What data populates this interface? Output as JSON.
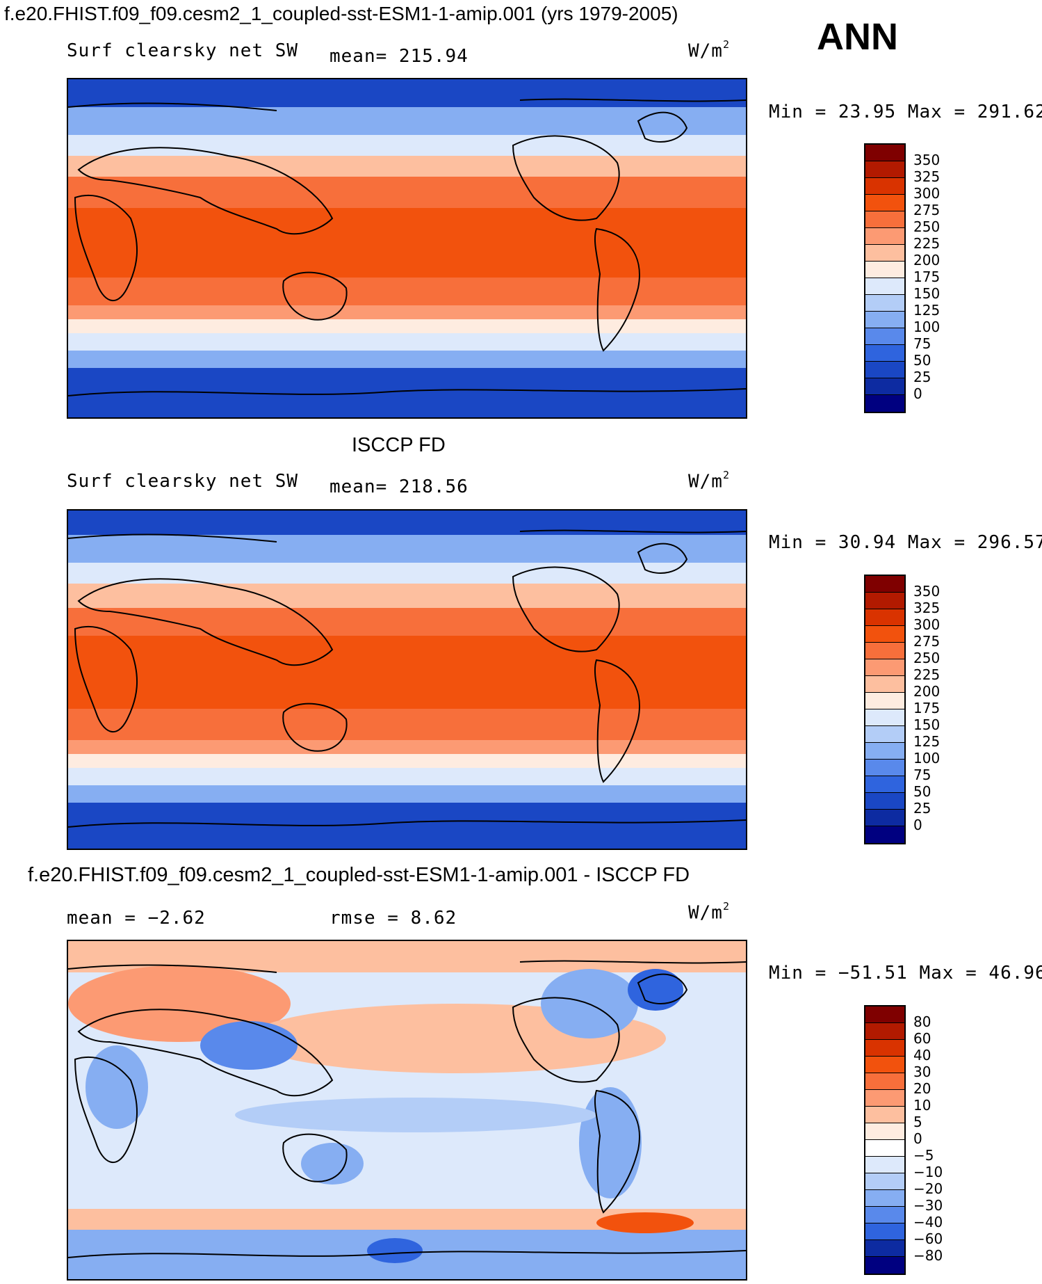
{
  "header": {
    "title": "f.e20.FHIST.f09_f09.cesm2_1_coupled-sst-ESM1-1-amip.001 (yrs 1979-2005)",
    "season": "ANN"
  },
  "panels": [
    {
      "id": "model",
      "section_title": "",
      "left_label": "Surf clearsky net SW",
      "stat_label": "mean= 215.94",
      "units": "W/m",
      "units_sup": "2",
      "minmax": "Min =   23.95 Max = 291.62",
      "colorbar": {
        "labels": [
          "350",
          "325",
          "300",
          "275",
          "250",
          "225",
          "200",
          "175",
          "150",
          "125",
          "100",
          "75",
          "50",
          "25",
          "0"
        ],
        "colors": [
          "#7f0000",
          "#b21a00",
          "#d93300",
          "#f2520d",
          "#f76f3b",
          "#fc9a73",
          "#fdbf9f",
          "#feece0",
          "#dde9fb",
          "#b3cdf7",
          "#86aef2",
          "#5989eb",
          "#2f64de",
          "#1a47c4",
          "#0d2ba1",
          "#000080"
        ]
      }
    },
    {
      "id": "obs",
      "section_title": "ISCCP FD",
      "left_label": "Surf clearsky net SW",
      "stat_label": "mean= 218.56",
      "units": "W/m",
      "units_sup": "2",
      "minmax": "Min =   30.94 Max = 296.57",
      "colorbar": {
        "labels": [
          "350",
          "325",
          "300",
          "275",
          "250",
          "225",
          "200",
          "175",
          "150",
          "125",
          "100",
          "75",
          "50",
          "25",
          "0"
        ],
        "colors": [
          "#7f0000",
          "#b21a00",
          "#d93300",
          "#f2520d",
          "#f76f3b",
          "#fc9a73",
          "#fdbf9f",
          "#feece0",
          "#dde9fb",
          "#b3cdf7",
          "#86aef2",
          "#5989eb",
          "#2f64de",
          "#1a47c4",
          "#0d2ba1",
          "#000080"
        ]
      }
    },
    {
      "id": "diff",
      "section_title": "f.e20.FHIST.f09_f09.cesm2_1_coupled-sst-ESM1-1-amip.001 - ISCCP FD",
      "left_label": "mean =  −2.62",
      "stat_label": "rmse =   8.62",
      "units": "W/m",
      "units_sup": "2",
      "minmax": "Min = −51.51 Max =  46.96",
      "colorbar": {
        "labels": [
          "80",
          "60",
          "40",
          "30",
          "20",
          "10",
          "5",
          "0",
          "−5",
          "−10",
          "−20",
          "−30",
          "−40",
          "−60",
          "−80"
        ],
        "colors": [
          "#7f0000",
          "#b21a00",
          "#d93300",
          "#f2520d",
          "#f76f3b",
          "#fc9a73",
          "#fdbf9f",
          "#feece0",
          "#ffffff",
          "#dde9fb",
          "#b3cdf7",
          "#86aef2",
          "#5989eb",
          "#2f64de",
          "#0d2ba1",
          "#000080"
        ]
      }
    }
  ]
}
